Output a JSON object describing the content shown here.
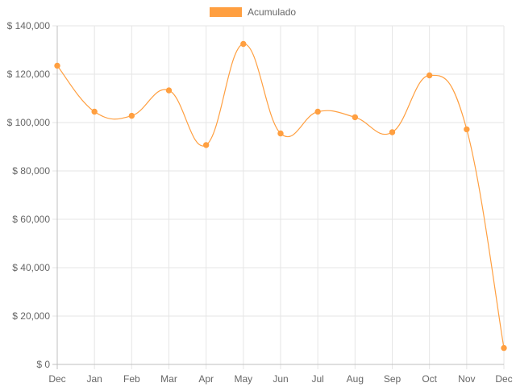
{
  "chart_data": {
    "type": "line",
    "categories": [
      "Dec",
      "Jan",
      "Feb",
      "Mar",
      "Apr",
      "May",
      "Jun",
      "Jul",
      "Aug",
      "Sep",
      "Oct",
      "Nov",
      "Dec"
    ],
    "series": [
      {
        "name": "Acumulado",
        "values": [
          123500,
          104500,
          102800,
          113300,
          90700,
          132500,
          95500,
          104500,
          102200,
          96000,
          119500,
          97200,
          6800
        ]
      }
    ],
    "ylim": [
      0,
      140000
    ],
    "yticks": [
      0,
      20000,
      40000,
      60000,
      80000,
      100000,
      120000,
      140000
    ],
    "ytick_labels": [
      "$ 0",
      "$ 20,000",
      "$ 40,000",
      "$ 60,000",
      "$ 80,000",
      "$ 100,000",
      "$ 120,000",
      "$ 140,000"
    ],
    "legend": {
      "label": "Acumulado",
      "position": "top"
    },
    "colors": {
      "line": "#ff9f40",
      "grid": "#e6e6e6",
      "axis": "#bfbfbf",
      "text": "#666666"
    },
    "grid": true,
    "curve": "smooth"
  }
}
